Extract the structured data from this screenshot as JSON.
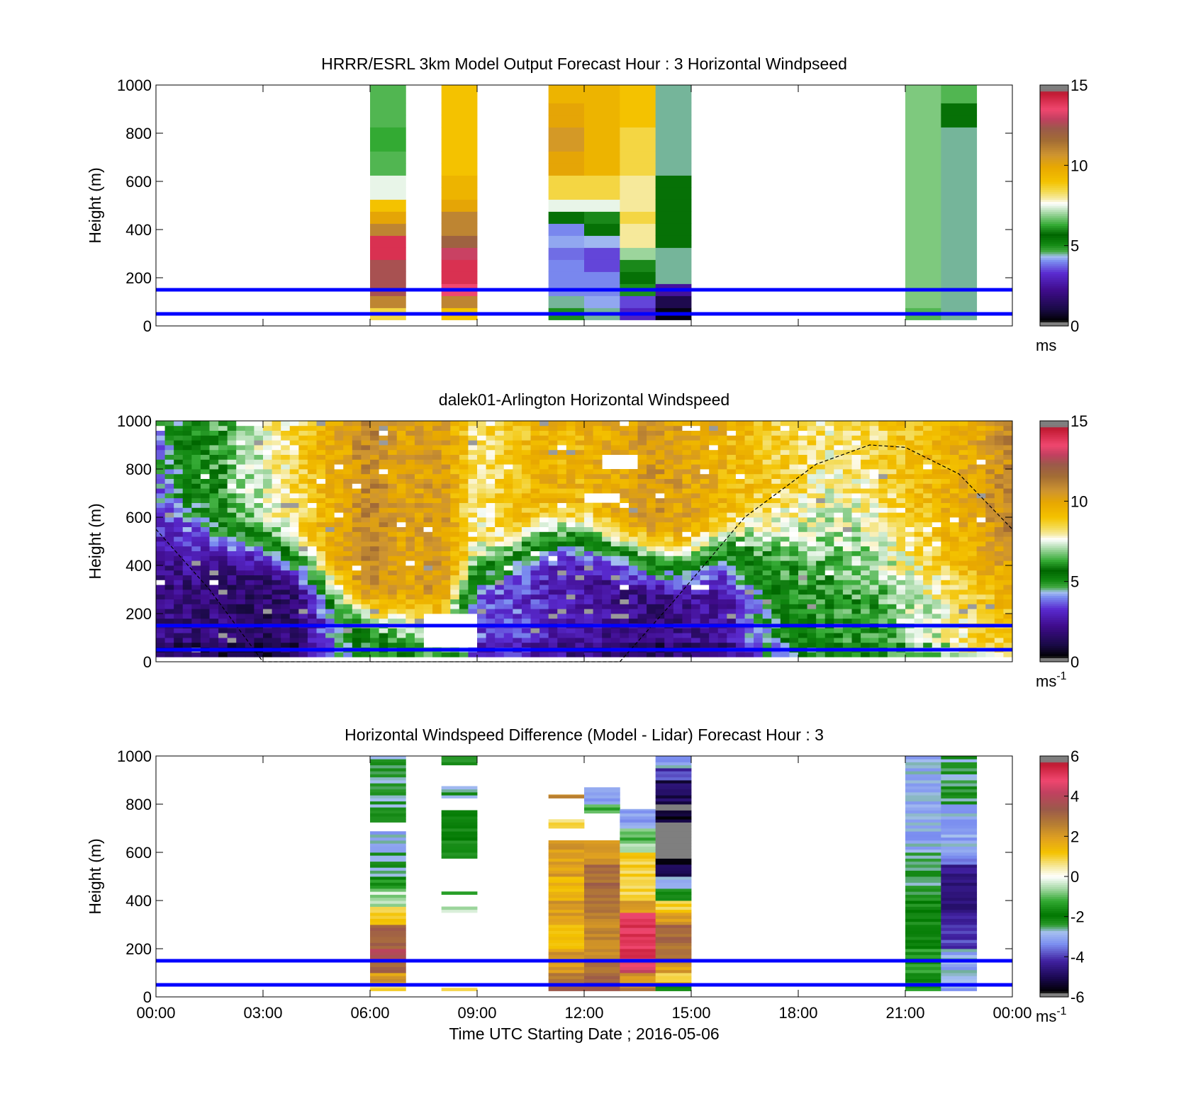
{
  "chart_data": [
    {
      "type": "heatmap",
      "title": "HRRR/ESRL 3km Model Output   Forecast Hour : 3 Horizontal Windpseed",
      "xlabel": "",
      "ylabel": "Height (m)",
      "xlim": [
        0,
        24
      ],
      "ylim": [
        0,
        1000
      ],
      "yticks": [
        0,
        200,
        400,
        600,
        800,
        1000
      ],
      "clim": [
        0,
        15
      ],
      "colorbar_ticks": [
        "0",
        "5",
        "10",
        "15"
      ],
      "colorbar_unit": "ms",
      "colorbar_exp": "",
      "reference_lines_m": [
        50,
        150
      ],
      "cell_height_m": 50,
      "columns": [
        {
          "x0": 6.0,
          "x1": 7.0,
          "y0": 25,
          "segments": [
            [
              30,
              4.5
            ],
            [
              50,
              8.5
            ],
            [
              100,
              11
            ],
            [
              150,
              12.5
            ],
            [
              250,
              12.5
            ],
            [
              300,
              14
            ],
            [
              350,
              14
            ],
            [
              400,
              11
            ],
            [
              450,
              10
            ],
            [
              500,
              9
            ],
            [
              600,
              7.5
            ],
            [
              700,
              6.5
            ],
            [
              800,
              6.3
            ],
            [
              900,
              6.5
            ],
            [
              1000,
              6.5
            ]
          ]
        },
        {
          "x0": 8.0,
          "x1": 9.0,
          "y0": 25,
          "segments": [
            [
              30,
              4.5
            ],
            [
              60,
              9
            ],
            [
              100,
              11
            ],
            [
              150,
              13.5
            ],
            [
              250,
              14
            ],
            [
              300,
              13
            ],
            [
              350,
              12
            ],
            [
              450,
              11
            ],
            [
              500,
              10
            ],
            [
              600,
              9.5
            ],
            [
              1000,
              9
            ]
          ]
        },
        {
          "x0": 11.0,
          "x1": 12.0,
          "y0": 25,
          "segments": [
            [
              50,
              5
            ],
            [
              100,
              4.5
            ],
            [
              200,
              4
            ],
            [
              250,
              4
            ],
            [
              300,
              3.8
            ],
            [
              350,
              4.2
            ],
            [
              400,
              4
            ],
            [
              450,
              5.5
            ],
            [
              500,
              7.5
            ],
            [
              600,
              8.5
            ],
            [
              700,
              10
            ],
            [
              800,
              10.5
            ],
            [
              900,
              10
            ],
            [
              1000,
              9.5
            ]
          ]
        },
        {
          "x0": 12.0,
          "x1": 13.0,
          "y0": 25,
          "segments": [
            [
              50,
              4.5
            ],
            [
              100,
              4.2
            ],
            [
              200,
              4
            ],
            [
              300,
              3.5
            ],
            [
              350,
              4.3
            ],
            [
              400,
              5.5
            ],
            [
              450,
              6
            ],
            [
              500,
              7.5
            ],
            [
              600,
              8.5
            ],
            [
              1000,
              9.5
            ]
          ]
        },
        {
          "x0": 13.0,
          "x1": 14.0,
          "y0": 25,
          "segments": [
            [
              50,
              3
            ],
            [
              100,
              3.5
            ],
            [
              150,
              5
            ],
            [
              200,
              5.5
            ],
            [
              250,
              6
            ],
            [
              300,
              7
            ],
            [
              400,
              8
            ],
            [
              450,
              8.5
            ],
            [
              600,
              8
            ],
            [
              800,
              8.5
            ],
            [
              1000,
              9
            ]
          ]
        },
        {
          "x0": 14.0,
          "x1": 15.0,
          "y0": 25,
          "segments": [
            [
              50,
              0.5
            ],
            [
              100,
              1.2
            ],
            [
              150,
              2.5
            ],
            [
              200,
              4.5
            ],
            [
              300,
              4.5
            ],
            [
              400,
              5.5
            ],
            [
              600,
              5.5
            ],
            [
              1000,
              4.5
            ]
          ]
        },
        {
          "x0": 21.0,
          "x1": 22.0,
          "y0": 25,
          "segments": [
            [
              50,
              6.5
            ],
            [
              100,
              6.8
            ],
            [
              1000,
              6.8
            ]
          ]
        },
        {
          "x0": 22.0,
          "x1": 23.0,
          "y0": 25,
          "segments": [
            [
              50,
              4.5
            ],
            [
              100,
              4.5
            ],
            [
              800,
              4.5
            ],
            [
              900,
              5.5
            ],
            [
              1000,
              6.5
            ]
          ]
        }
      ]
    },
    {
      "type": "heatmap",
      "title": "dalek01-Arlington  Horizontal Windspeed",
      "xlabel": "",
      "ylabel": "Height (m)",
      "xlim": [
        0,
        24
      ],
      "ylim": [
        0,
        1000
      ],
      "yticks": [
        0,
        200,
        400,
        600,
        800,
        1000
      ],
      "clim": [
        0,
        15
      ],
      "colorbar_ticks": [
        "0",
        "5",
        "10",
        "15"
      ],
      "colorbar_unit": "ms",
      "colorbar_exp": "-1",
      "reference_lines_m": [
        50,
        150
      ],
      "bl_height_curve": [
        [
          0,
          550
        ],
        [
          1.5,
          300
        ],
        [
          3.0,
          0
        ],
        [
          13.0,
          0
        ],
        [
          14.5,
          250
        ],
        [
          16.5,
          600
        ],
        [
          18.5,
          820
        ],
        [
          20.0,
          900
        ],
        [
          21.0,
          890
        ],
        [
          22.5,
          780
        ],
        [
          24.0,
          550
        ]
      ],
      "profiles": [
        {
          "x": 0.0,
          "base": 2,
          "top": 4,
          "zb": 300,
          "zt": 800
        },
        {
          "x": 1.0,
          "base": 2,
          "top": 5.5,
          "zb": 300,
          "zt": 800
        },
        {
          "x": 2.0,
          "base": 1.8,
          "top": 6.5,
          "zb": 320,
          "zt": 700
        },
        {
          "x": 3.0,
          "base": 1.6,
          "top": 7.5,
          "zb": 300,
          "zt": 650
        },
        {
          "x": 4.0,
          "base": 2,
          "top": 8.5,
          "zb": 250,
          "zt": 600
        },
        {
          "x": 4.7,
          "base": 3.5,
          "top": 9.5,
          "zb": 150,
          "zt": 500
        },
        {
          "x": 5.3,
          "base": 5,
          "top": 10,
          "zb": 100,
          "zt": 400
        },
        {
          "x": 6.0,
          "base": 6,
          "top": 11,
          "zb": 80,
          "zt": 350
        },
        {
          "x": 7.0,
          "base": 6.5,
          "top": 10,
          "zb": 80,
          "zt": 300
        },
        {
          "x": 8.0,
          "base": 7,
          "top": 10.5,
          "zb": 100,
          "zt": 300
        },
        {
          "x": 9.0,
          "base": 3.5,
          "top": 8,
          "zb": 200,
          "zt": 550
        },
        {
          "x": 10.0,
          "base": 3.5,
          "top": 9,
          "zb": 300,
          "zt": 600
        },
        {
          "x": 11.0,
          "base": 3,
          "top": 9.5,
          "zb": 350,
          "zt": 700
        },
        {
          "x": 12.0,
          "base": 2.5,
          "top": 9.5,
          "zb": 350,
          "zt": 700
        },
        {
          "x": 13.0,
          "base": 2.2,
          "top": 10,
          "zb": 280,
          "zt": 650
        },
        {
          "x": 14.0,
          "base": 2,
          "top": 10.5,
          "zb": 230,
          "zt": 600
        },
        {
          "x": 15.0,
          "base": 2.2,
          "top": 10,
          "zb": 230,
          "zt": 600
        },
        {
          "x": 16.0,
          "base": 2.5,
          "top": 9.5,
          "zb": 250,
          "zt": 700
        },
        {
          "x": 17.0,
          "base": 4.5,
          "top": 9,
          "zb": 150,
          "zt": 800
        },
        {
          "x": 18.0,
          "base": 5.5,
          "top": 8.5,
          "zb": 100,
          "zt": 850
        },
        {
          "x": 19.0,
          "base": 6,
          "top": 8,
          "zb": 100,
          "zt": 900
        },
        {
          "x": 20.0,
          "base": 6,
          "top": 8.5,
          "zb": 100,
          "zt": 900
        },
        {
          "x": 21.0,
          "base": 7,
          "top": 9,
          "zb": 100,
          "zt": 800
        },
        {
          "x": 22.0,
          "base": 7.5,
          "top": 9.5,
          "zb": 100,
          "zt": 700
        },
        {
          "x": 23.0,
          "base": 8.5,
          "top": 10,
          "zb": 100,
          "zt": 600
        },
        {
          "x": 24.0,
          "base": 9,
          "top": 11,
          "zb": 100,
          "zt": 600
        }
      ],
      "data_gaps": [
        {
          "x0": 7.4,
          "x1": 9.0,
          "y0": 70,
          "y1": 200
        },
        {
          "x0": 12.5,
          "x1": 13.6,
          "y0": 800,
          "y1": 870
        },
        {
          "x0": 12.0,
          "x1": 13.0,
          "y0": 660,
          "y1": 700
        }
      ]
    },
    {
      "type": "heatmap",
      "title": "Horizontal Windspeed Difference (Model - Lidar) Forecast Hour : 3",
      "xlabel": "Time UTC  Starting Date ; 2016-05-06",
      "ylabel": "Height (m)",
      "xlim": [
        0,
        24
      ],
      "ylim": [
        0,
        1000
      ],
      "yticks": [
        0,
        200,
        400,
        600,
        800,
        1000
      ],
      "clim": [
        -6,
        6
      ],
      "colorbar_ticks": [
        "-6",
        "-4",
        "-2",
        "0",
        "2",
        "4",
        "6"
      ],
      "colorbar_unit": "ms",
      "colorbar_exp": "-1",
      "reference_lines_m": [
        50,
        150
      ],
      "xticks": [
        0,
        3,
        6,
        9,
        12,
        15,
        18,
        21,
        24
      ],
      "xticklabels": [
        "00:00",
        "03:00",
        "06:00",
        "09:00",
        "12:00",
        "15:00",
        "18:00",
        "21:00",
        "00:00"
      ],
      "cell_height_m": 12.5,
      "columns": [
        {
          "x0": 6.0,
          "x1": 7.0,
          "y0": 25,
          "y1": 1000,
          "gaps": [
            [
              690,
              720
            ]
          ],
          "segments": [
            [
              50,
              1
            ],
            [
              100,
              2
            ],
            [
              150,
              3
            ],
            [
              200,
              4
            ],
            [
              300,
              3
            ],
            [
              380,
              1
            ],
            [
              450,
              -0.5
            ],
            [
              500,
              -1.5
            ],
            [
              600,
              -2.5
            ],
            [
              700,
              -3
            ],
            [
              800,
              -2.5
            ],
            [
              1000,
              -2.5
            ]
          ]
        },
        {
          "x0": 8.0,
          "x1": 9.0,
          "y0": 25,
          "y1": 1000,
          "gaps": [
            [
              40,
              350
            ],
            [
              370,
              420
            ],
            [
              440,
              580
            ],
            [
              780,
              820
            ],
            [
              870,
              960
            ]
          ],
          "segments": [
            [
              40,
              1
            ],
            [
              350,
              0.5
            ],
            [
              420,
              -0.5
            ],
            [
              440,
              -1.5
            ],
            [
              800,
              -2
            ],
            [
              1000,
              -2.5
            ]
          ]
        },
        {
          "x0": 11.0,
          "x1": 12.0,
          "y0": 25,
          "y1": 840,
          "gaps": [
            [
              650,
              700
            ],
            [
              740,
              820
            ]
          ],
          "segments": [
            [
              50,
              3
            ],
            [
              100,
              2.5
            ],
            [
              200,
              2
            ],
            [
              300,
              1.5
            ],
            [
              400,
              2
            ],
            [
              500,
              1.5
            ],
            [
              650,
              2
            ],
            [
              740,
              0.8
            ],
            [
              840,
              2.5
            ]
          ]
        },
        {
          "x0": 12.0,
          "x1": 13.0,
          "y0": 25,
          "y1": 870,
          "gaps": [
            [
              650,
              760
            ]
          ],
          "segments": [
            [
              50,
              3.5
            ],
            [
              150,
              3
            ],
            [
              250,
              2.5
            ],
            [
              350,
              2.5
            ],
            [
              450,
              3
            ],
            [
              550,
              3
            ],
            [
              650,
              2
            ],
            [
              800,
              -1
            ],
            [
              870,
              -3
            ]
          ]
        },
        {
          "x0": 13.0,
          "x1": 14.0,
          "y0": 25,
          "y1": 780,
          "gaps": [],
          "segments": [
            [
              50,
              2.5
            ],
            [
              100,
              2
            ],
            [
              150,
              4.5
            ],
            [
              350,
              5
            ],
            [
              400,
              2
            ],
            [
              500,
              1
            ],
            [
              600,
              1
            ],
            [
              650,
              -0.5
            ],
            [
              700,
              -1
            ],
            [
              780,
              -3
            ]
          ]
        },
        {
          "x0": 14.0,
          "x1": 15.0,
          "y0": 25,
          "y1": 1000,
          "gaps": [],
          "segments": [
            [
              50,
              -2
            ],
            [
              100,
              1
            ],
            [
              150,
              2
            ],
            [
              300,
              3
            ],
            [
              350,
              2
            ],
            [
              400,
              1
            ],
            [
              450,
              -2
            ],
            [
              500,
              -3
            ],
            [
              550,
              -5
            ],
            [
              580,
              -5.5
            ],
            [
              730,
              -6.5
            ],
            [
              800,
              -5.5
            ],
            [
              900,
              -5
            ],
            [
              950,
              -4
            ],
            [
              1000,
              -3
            ]
          ]
        },
        {
          "x0": 21.0,
          "x1": 22.0,
          "y0": 25,
          "y1": 1000,
          "gaps": [],
          "segments": [
            [
              100,
              -1.5
            ],
            [
              200,
              -1.5
            ],
            [
              400,
              -2
            ],
            [
              600,
              -2.5
            ],
            [
              800,
              -3
            ],
            [
              1000,
              -3
            ]
          ]
        },
        {
          "x0": 22.0,
          "x1": 23.0,
          "y0": 25,
          "y1": 1000,
          "gaps": [],
          "segments": [
            [
              200,
              -3
            ],
            [
              350,
              -4
            ],
            [
              550,
              -4.5
            ],
            [
              600,
              -3.5
            ],
            [
              800,
              -3
            ],
            [
              1000,
              -2.5
            ]
          ]
        }
      ]
    }
  ]
}
